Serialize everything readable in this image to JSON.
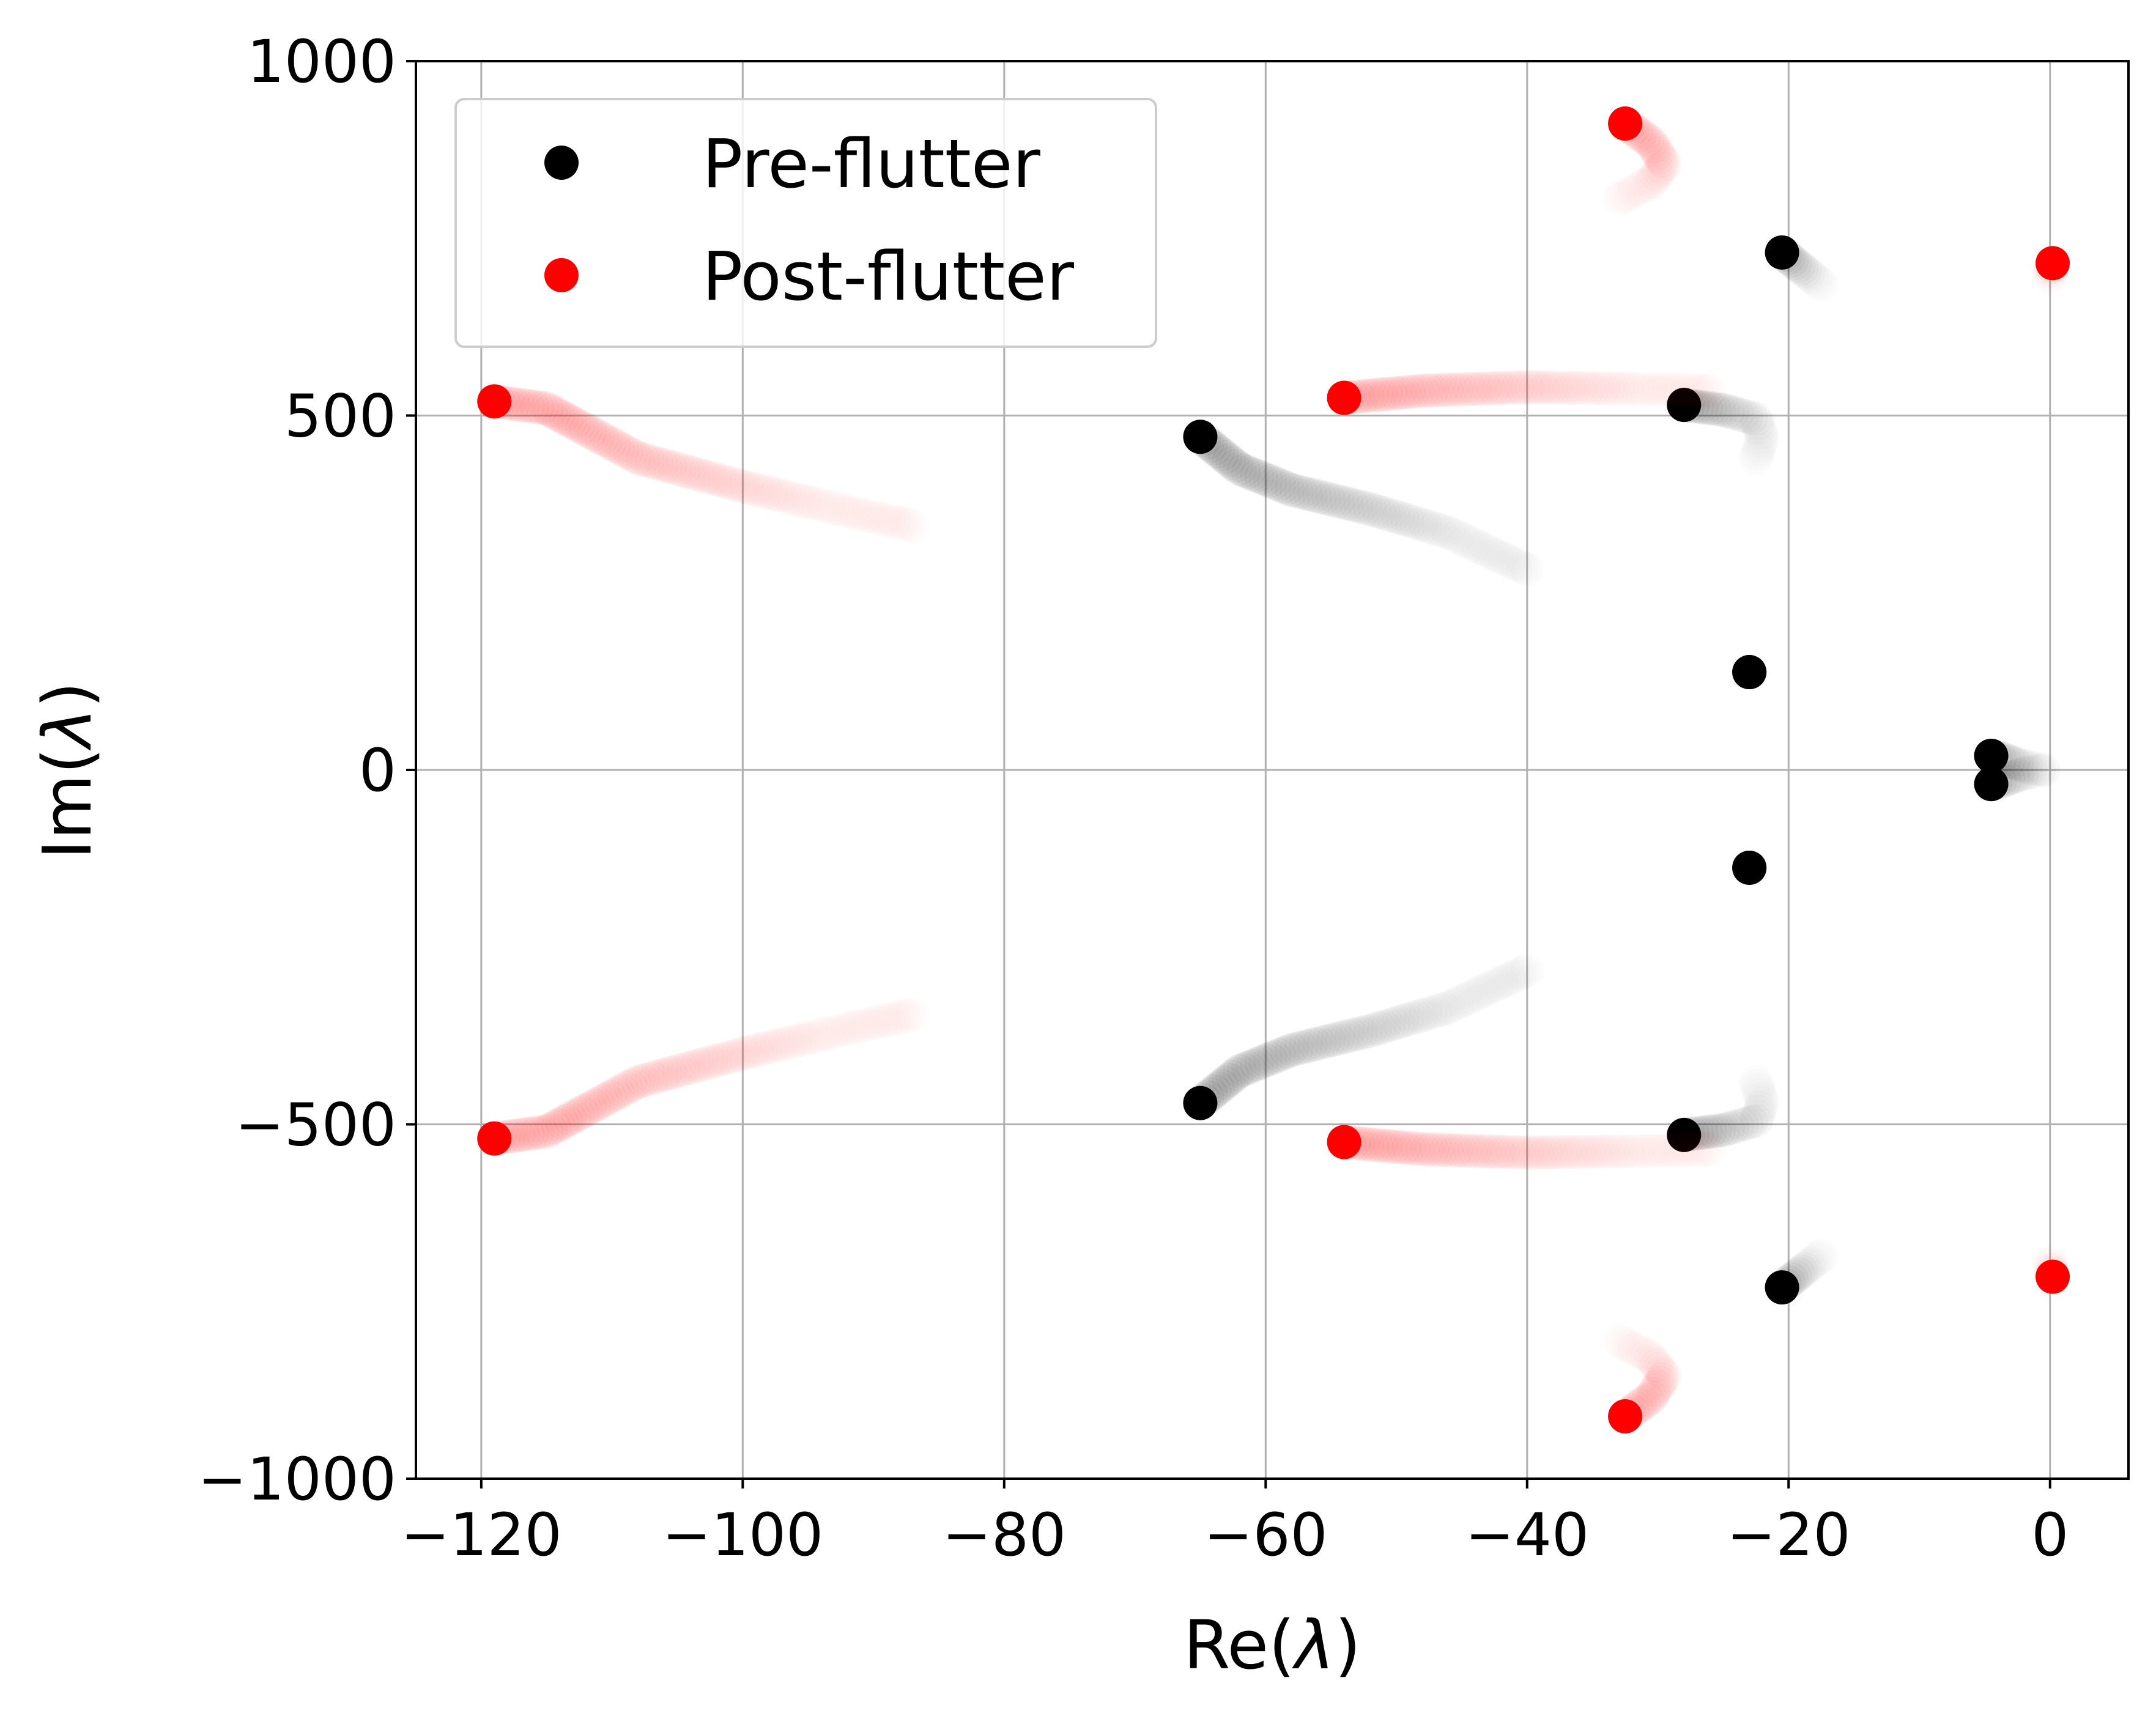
{
  "chart_data": {
    "type": "scatter",
    "title": "",
    "xlabel": "Re(",
    "xlabel_symbol": "λ",
    "xlabel_suffix": ")",
    "ylabel": "Im(",
    "ylabel_symbol": "λ",
    "ylabel_suffix": ")",
    "xlim": [
      -125,
      6
    ],
    "ylim": [
      -1000,
      1000
    ],
    "xticks": [
      -120,
      -100,
      -80,
      -60,
      -40,
      -20,
      0
    ],
    "xtick_labels": [
      "−120",
      "−100",
      "−80",
      "−60",
      "−40",
      "−20",
      "0"
    ],
    "yticks": [
      -1000,
      -500,
      0,
      500,
      1000
    ],
    "ytick_labels": [
      "−1000",
      "−500",
      "0",
      "500",
      "1000"
    ],
    "grid": true,
    "legend_placement": "top-left",
    "series": [
      {
        "name": "Pre-flutter",
        "color": "#000000",
        "branches": [
          {
            "points": [
              [
                -65,
                470
              ],
              [
                -62,
                425
              ],
              [
                -58,
                395
              ],
              [
                -52,
                368
              ],
              [
                -46,
                335
              ],
              [
                -42,
                300
              ],
              [
                -40,
                283
              ]
            ]
          },
          {
            "points": [
              [
                -65,
                -470
              ],
              [
                -62,
                -425
              ],
              [
                -58,
                -395
              ],
              [
                -52,
                -368
              ],
              [
                -46,
                -335
              ],
              [
                -42,
                -300
              ],
              [
                -40,
                -283
              ]
            ]
          },
          {
            "points": [
              [
                -28,
                515
              ],
              [
                -25,
                508
              ],
              [
                -22.5,
                495
              ],
              [
                -22,
                470
              ],
              [
                -22.5,
                440
              ]
            ]
          },
          {
            "points": [
              [
                -28,
                -515
              ],
              [
                -25,
                -508
              ],
              [
                -22.5,
                -495
              ],
              [
                -22,
                -470
              ],
              [
                -22.5,
                -440
              ]
            ]
          },
          {
            "points": [
              [
                -20.5,
                730
              ],
              [
                -19.5,
                715
              ],
              [
                -18.5,
                700
              ],
              [
                -17.5,
                685
              ]
            ]
          },
          {
            "points": [
              [
                -20.5,
                -730
              ],
              [
                -19.5,
                -715
              ],
              [
                -18.5,
                -700
              ],
              [
                -17.5,
                -685
              ]
            ]
          },
          {
            "points": [
              [
                -23,
                138
              ]
            ]
          },
          {
            "points": [
              [
                -23,
                -138
              ]
            ]
          },
          {
            "points": [
              [
                -4.5,
                20
              ],
              [
                -3.5,
                15
              ],
              [
                -2.5,
                8
              ],
              [
                -1.5,
                3
              ],
              [
                -0.5,
                0
              ]
            ]
          },
          {
            "points": [
              [
                -4.5,
                -20
              ],
              [
                -3.5,
                -15
              ],
              [
                -2.5,
                -8
              ],
              [
                -1.5,
                -3
              ],
              [
                -0.5,
                0
              ]
            ]
          }
        ]
      },
      {
        "name": "Post-flutter",
        "color": "#ff0000",
        "branches": [
          {
            "points": [
              [
                -119,
                520
              ],
              [
                -115,
                510
              ],
              [
                -112,
                480
              ],
              [
                -108,
                440
              ],
              [
                -100,
                400
              ],
              [
                -92,
                365
              ],
              [
                -87,
                345
              ]
            ]
          },
          {
            "points": [
              [
                -119,
                -520
              ],
              [
                -115,
                -510
              ],
              [
                -112,
                -480
              ],
              [
                -108,
                -440
              ],
              [
                -100,
                -400
              ],
              [
                -92,
                -365
              ],
              [
                -87,
                -345
              ]
            ]
          },
          {
            "points": [
              [
                -54,
                525
              ],
              [
                -48,
                535
              ],
              [
                -40,
                540
              ],
              [
                -32,
                538
              ],
              [
                -26,
                535
              ]
            ]
          },
          {
            "points": [
              [
                -54,
                -525
              ],
              [
                -48,
                -535
              ],
              [
                -40,
                -540
              ],
              [
                -32,
                -538
              ],
              [
                -26,
                -535
              ]
            ]
          },
          {
            "points": [
              [
                -32.5,
                912
              ],
              [
                -30.5,
                885
              ],
              [
                -29.5,
                855
              ],
              [
                -30.5,
                830
              ],
              [
                -33,
                805
              ]
            ]
          },
          {
            "points": [
              [
                -32.5,
                -912
              ],
              [
                -30.5,
                -885
              ],
              [
                -29.5,
                -855
              ],
              [
                -30.5,
                -830
              ],
              [
                -33,
                -805
              ]
            ]
          },
          {
            "points": [
              [
                0.2,
                715
              ],
              [
                0.1,
                705
              ],
              [
                0,
                695
              ]
            ]
          },
          {
            "points": [
              [
                0.2,
                -715
              ],
              [
                0.1,
                -705
              ],
              [
                0,
                -695
              ]
            ]
          }
        ]
      }
    ]
  }
}
